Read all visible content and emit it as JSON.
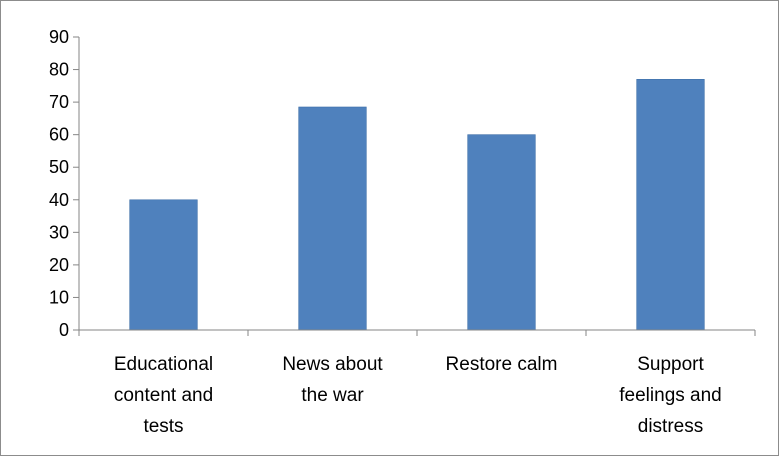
{
  "chart_data": {
    "type": "bar",
    "categories": [
      [
        "Educational",
        "content and",
        "tests"
      ],
      [
        "News about",
        "the war"
      ],
      [
        "Restore calm"
      ],
      [
        "Support",
        "feelings and",
        "distress"
      ]
    ],
    "values": [
      40,
      68.5,
      60,
      77
    ],
    "yticks": [
      0,
      10,
      20,
      30,
      40,
      50,
      60,
      70,
      80,
      90
    ],
    "ylim": [
      0,
      90
    ],
    "grid": false,
    "legend": "none",
    "colors": {
      "bar": "#4f81bd",
      "bar_edge": "#3c6ea8",
      "axis": "#868686",
      "frame": "#8c8c8c"
    }
  }
}
